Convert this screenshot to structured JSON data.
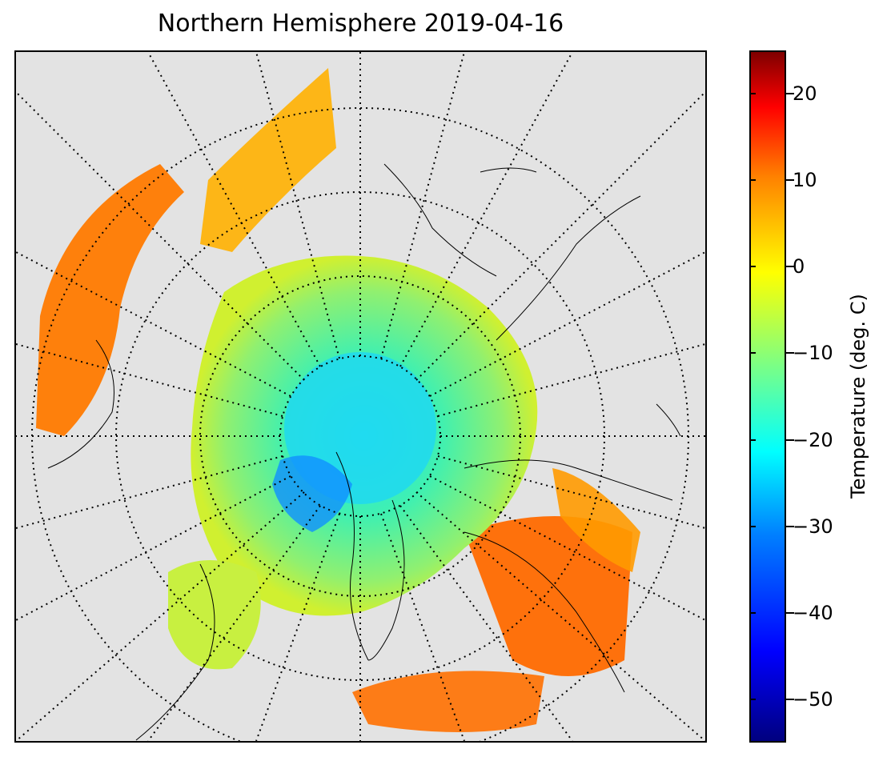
{
  "title": "Northern Hemisphere 2019-04-16",
  "map": {
    "projection": "north-polar-stereographic",
    "background_color": "#e3e3e3",
    "graticule": "dotted"
  },
  "colorbar": {
    "label": "Temperature (deg. C)",
    "colormap": "jet",
    "range": [
      -55,
      25
    ],
    "ticks": [
      {
        "value": 20,
        "label": "20"
      },
      {
        "value": 10,
        "label": "10"
      },
      {
        "value": 0,
        "label": "0"
      },
      {
        "value": -10,
        "label": "−10"
      },
      {
        "value": -20,
        "label": "−20"
      },
      {
        "value": -30,
        "label": "−30"
      },
      {
        "value": -40,
        "label": "−40"
      },
      {
        "value": -50,
        "label": "−50"
      }
    ]
  }
}
